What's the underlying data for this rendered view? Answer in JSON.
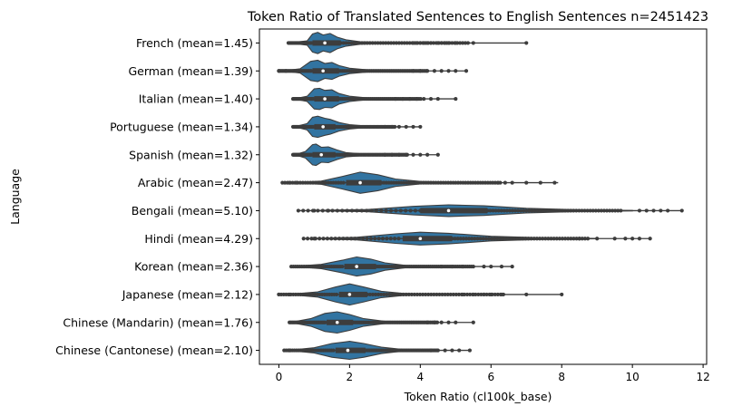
{
  "chart_data": {
    "type": "violin",
    "orientation": "horizontal",
    "title": "Token Ratio of Translated Sentences to English Sentences n=2451423",
    "xlabel": "Token Ratio (cl100k_base)",
    "ylabel": "Language",
    "xlim": [
      -0.55,
      12.1
    ],
    "xticks": [
      0,
      2,
      4,
      6,
      8,
      10,
      12
    ],
    "grid": false,
    "colors": {
      "violin_fill": "#3274a1",
      "line": "#3d3d3d",
      "axes": "#000000"
    },
    "categories": [
      "French (mean=1.45)",
      "German (mean=1.39)",
      "Italian (mean=1.40)",
      "Portuguese (mean=1.34)",
      "Spanish (mean=1.32)",
      "Arabic (mean=2.47)",
      "Bengali (mean=5.10)",
      "Hindi (mean=4.29)",
      "Korean (mean=2.36)",
      "Japanese (mean=2.12)",
      "Chinese (Mandarin) (mean=1.76)",
      "Chinese (Cantonese) (mean=2.10)"
    ],
    "series": [
      {
        "label": "French (mean=1.45)",
        "mean": 1.45,
        "min": 0.27,
        "q1": 0.95,
        "median": 1.3,
        "q3": 1.75,
        "max": 7.0,
        "density": [
          [
            0.4,
            0.05
          ],
          [
            0.8,
            0.2
          ],
          [
            0.95,
            0.85
          ],
          [
            1.1,
            1.0
          ],
          [
            1.25,
            0.75
          ],
          [
            1.45,
            0.9
          ],
          [
            1.65,
            0.55
          ],
          [
            1.9,
            0.3
          ],
          [
            2.3,
            0.12
          ],
          [
            3.0,
            0.04
          ],
          [
            4.0,
            0.01
          ]
        ],
        "outliers": [
          3.8,
          3.9,
          4.0,
          4.1,
          4.2,
          4.3,
          4.5,
          4.6,
          4.7,
          4.8,
          5.0,
          5.5,
          7.0
        ]
      },
      {
        "label": "German (mean=1.39)",
        "mean": 1.39,
        "min": 0.0,
        "q1": 0.95,
        "median": 1.25,
        "q3": 1.7,
        "max": 5.3,
        "density": [
          [
            0.2,
            0.04
          ],
          [
            0.6,
            0.2
          ],
          [
            0.9,
            0.9
          ],
          [
            1.1,
            1.0
          ],
          [
            1.3,
            0.7
          ],
          [
            1.5,
            0.8
          ],
          [
            1.7,
            0.5
          ],
          [
            2.0,
            0.25
          ],
          [
            2.5,
            0.1
          ],
          [
            3.2,
            0.03
          ],
          [
            4.0,
            0.01
          ]
        ],
        "outliers": [
          0.0,
          0.2,
          3.8,
          4.0,
          4.2,
          4.4,
          4.6,
          4.8,
          5.0,
          5.3
        ]
      },
      {
        "label": "Italian (mean=1.40)",
        "mean": 1.4,
        "min": 0.4,
        "q1": 1.0,
        "median": 1.3,
        "q3": 1.7,
        "max": 5.0,
        "density": [
          [
            0.5,
            0.05
          ],
          [
            0.8,
            0.25
          ],
          [
            1.0,
            0.95
          ],
          [
            1.15,
            1.0
          ],
          [
            1.3,
            0.8
          ],
          [
            1.5,
            0.85
          ],
          [
            1.7,
            0.5
          ],
          [
            2.0,
            0.25
          ],
          [
            2.5,
            0.08
          ],
          [
            3.2,
            0.02
          ]
        ],
        "outliers": [
          3.3,
          3.5,
          3.7,
          3.9,
          4.1,
          4.3,
          4.5,
          5.0
        ]
      },
      {
        "label": "Portuguese (mean=1.34)",
        "mean": 1.34,
        "min": 0.4,
        "q1": 1.0,
        "median": 1.25,
        "q3": 1.6,
        "max": 4.0,
        "density": [
          [
            0.5,
            0.05
          ],
          [
            0.8,
            0.3
          ],
          [
            0.95,
            0.9
          ],
          [
            1.1,
            1.0
          ],
          [
            1.3,
            0.8
          ],
          [
            1.45,
            0.7
          ],
          [
            1.7,
            0.4
          ],
          [
            2.0,
            0.2
          ],
          [
            2.5,
            0.06
          ],
          [
            3.0,
            0.02
          ]
        ],
        "outliers": [
          3.0,
          3.2,
          3.4,
          3.6,
          3.8,
          4.0
        ]
      },
      {
        "label": "Spanish (mean=1.32)",
        "mean": 1.32,
        "min": 0.4,
        "q1": 0.95,
        "median": 1.2,
        "q3": 1.6,
        "max": 4.5,
        "density": [
          [
            0.5,
            0.05
          ],
          [
            0.75,
            0.3
          ],
          [
            0.95,
            0.95
          ],
          [
            1.05,
            1.0
          ],
          [
            1.2,
            0.7
          ],
          [
            1.4,
            0.75
          ],
          [
            1.65,
            0.45
          ],
          [
            1.9,
            0.2
          ],
          [
            2.4,
            0.07
          ],
          [
            3.0,
            0.02
          ]
        ],
        "outliers": [
          3.0,
          3.2,
          3.4,
          3.6,
          3.8,
          4.0,
          4.2,
          4.5
        ]
      },
      {
        "label": "Arabic (mean=2.47)",
        "mean": 2.47,
        "min": 0.1,
        "q1": 1.9,
        "median": 2.3,
        "q3": 2.9,
        "max": 7.9,
        "density": [
          [
            0.5,
            0.02
          ],
          [
            1.2,
            0.15
          ],
          [
            1.8,
            0.6
          ],
          [
            2.3,
            1.0
          ],
          [
            2.8,
            0.75
          ],
          [
            3.3,
            0.35
          ],
          [
            4.0,
            0.12
          ],
          [
            5.0,
            0.04
          ],
          [
            6.0,
            0.01
          ]
        ],
        "outliers": [
          0.3,
          0.5,
          6.2,
          6.4,
          6.6,
          7.0,
          7.4,
          7.8
        ]
      },
      {
        "label": "Bengali (mean=5.10)",
        "mean": 5.1,
        "min": 0.55,
        "q1": 4.0,
        "median": 4.8,
        "q3": 5.9,
        "max": 11.4,
        "density": [
          [
            1.0,
            0.02
          ],
          [
            2.5,
            0.1
          ],
          [
            3.8,
            0.4
          ],
          [
            4.8,
            0.55
          ],
          [
            5.8,
            0.45
          ],
          [
            7.0,
            0.22
          ],
          [
            8.5,
            0.08
          ],
          [
            10.0,
            0.02
          ]
        ],
        "outliers": [
          1.0,
          1.4,
          10.2,
          10.4,
          10.6,
          10.8,
          11.0,
          11.4
        ]
      },
      {
        "label": "Hindi (mean=4.29)",
        "mean": 4.29,
        "min": 0.7,
        "q1": 3.5,
        "median": 4.0,
        "q3": 4.9,
        "max": 10.5,
        "density": [
          [
            1.0,
            0.02
          ],
          [
            2.2,
            0.12
          ],
          [
            3.3,
            0.45
          ],
          [
            4.0,
            0.6
          ],
          [
            4.8,
            0.5
          ],
          [
            6.0,
            0.22
          ],
          [
            7.5,
            0.07
          ],
          [
            9.0,
            0.02
          ]
        ],
        "outliers": [
          1.0,
          8.5,
          9.0,
          9.5,
          9.8,
          10.0,
          10.2,
          10.5
        ]
      },
      {
        "label": "Korean (mean=2.36)",
        "mean": 2.36,
        "min": 0.35,
        "q1": 1.85,
        "median": 2.2,
        "q3": 2.75,
        "max": 6.6,
        "density": [
          [
            0.5,
            0.03
          ],
          [
            1.2,
            0.2
          ],
          [
            1.8,
            0.6
          ],
          [
            2.2,
            0.9
          ],
          [
            2.6,
            0.7
          ],
          [
            3.0,
            0.35
          ],
          [
            3.6,
            0.1
          ],
          [
            4.5,
            0.03
          ]
        ],
        "outliers": [
          4.6,
          4.9,
          5.2,
          5.5,
          5.8,
          6.0,
          6.3,
          6.6
        ]
      },
      {
        "label": "Japanese (mean=2.12)",
        "mean": 2.12,
        "min": 0.0,
        "q1": 1.7,
        "median": 2.0,
        "q3": 2.5,
        "max": 8.0,
        "density": [
          [
            0.4,
            0.04
          ],
          [
            1.1,
            0.25
          ],
          [
            1.6,
            0.7
          ],
          [
            2.0,
            1.0
          ],
          [
            2.4,
            0.7
          ],
          [
            2.9,
            0.3
          ],
          [
            3.5,
            0.1
          ],
          [
            4.5,
            0.03
          ]
        ],
        "outliers": [
          0.0,
          0.3,
          5.2,
          5.5,
          5.8,
          6.0,
          6.3,
          7.0,
          8.0
        ]
      },
      {
        "label": "Chinese (Mandarin) (mean=1.76)",
        "mean": 1.76,
        "min": 0.3,
        "q1": 1.35,
        "median": 1.65,
        "q3": 2.1,
        "max": 5.5,
        "density": [
          [
            0.4,
            0.05
          ],
          [
            0.9,
            0.35
          ],
          [
            1.3,
            0.85
          ],
          [
            1.65,
            1.0
          ],
          [
            2.0,
            0.75
          ],
          [
            2.4,
            0.35
          ],
          [
            3.0,
            0.1
          ],
          [
            3.8,
            0.02
          ]
        ],
        "outliers": [
          4.2,
          4.4,
          4.6,
          4.8,
          5.0,
          5.5
        ]
      },
      {
        "label": "Chinese (Cantonese) (mean=2.10)",
        "mean": 2.1,
        "min": 0.15,
        "q1": 1.6,
        "median": 1.95,
        "q3": 2.45,
        "max": 5.4,
        "density": [
          [
            0.4,
            0.04
          ],
          [
            1.0,
            0.25
          ],
          [
            1.5,
            0.65
          ],
          [
            2.0,
            0.85
          ],
          [
            2.4,
            0.65
          ],
          [
            2.9,
            0.3
          ],
          [
            3.5,
            0.08
          ],
          [
            4.2,
            0.02
          ]
        ],
        "outliers": [
          0.3,
          4.3,
          4.5,
          4.7,
          4.9,
          5.1,
          5.4
        ]
      }
    ]
  }
}
